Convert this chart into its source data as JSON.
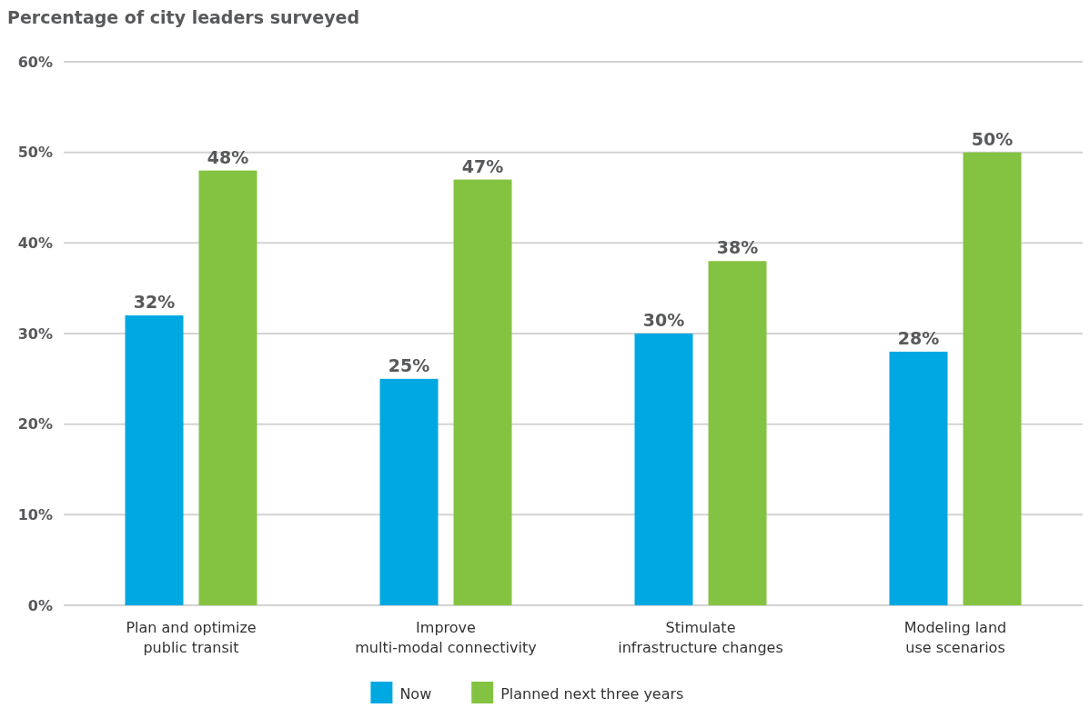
{
  "chart_data": {
    "type": "bar",
    "title": "Percentage of city leaders surveyed",
    "categories": [
      "Plan and optimize\npublic transit",
      "Improve\nmulti-modal connectivity",
      "Stimulate\ninfrastructure changes",
      "Modeling land\nuse scenarios"
    ],
    "series": [
      {
        "name": "Now",
        "color": "#00a8e1",
        "values": [
          32,
          25,
          30,
          28
        ],
        "value_labels": [
          "32%",
          "25%",
          "30%",
          "28%"
        ]
      },
      {
        "name": "Planned next three years",
        "color": "#84c341",
        "values": [
          48,
          47,
          38,
          50
        ],
        "value_labels": [
          "48%",
          "47%",
          "38%",
          "50%"
        ]
      }
    ],
    "ylim": [
      0,
      60
    ],
    "yticks": [
      {
        "value": 0,
        "label": "0%"
      },
      {
        "value": 10,
        "label": "10%"
      },
      {
        "value": 20,
        "label": "20%"
      },
      {
        "value": 30,
        "label": "30%"
      },
      {
        "value": 40,
        "label": "40%"
      },
      {
        "value": 50,
        "label": "50%"
      },
      {
        "value": 60,
        "label": "60%"
      }
    ],
    "grid": "y",
    "legend": "bottom"
  }
}
